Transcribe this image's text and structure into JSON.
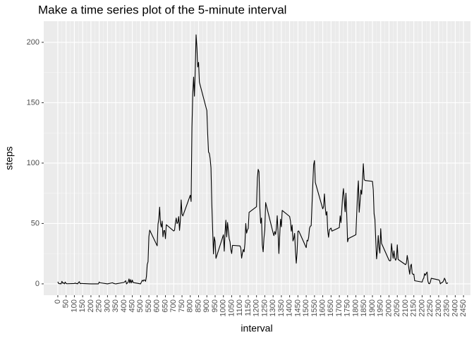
{
  "chart_data": {
    "type": "line",
    "title": "Make a time series plot of the 5-minute interval",
    "x_label": "interval",
    "y_label": "steps",
    "color": "#000000",
    "grid": true,
    "xlim": [
      -85,
      2492
    ],
    "ylim": [
      -9.4,
      217.5
    ],
    "xticks": [
      0,
      50,
      100,
      150,
      200,
      250,
      300,
      350,
      400,
      450,
      500,
      550,
      600,
      650,
      700,
      750,
      800,
      850,
      900,
      950,
      1000,
      1050,
      1100,
      1150,
      1200,
      1250,
      1300,
      1350,
      1400,
      1450,
      1500,
      1550,
      1600,
      1650,
      1700,
      1750,
      1800,
      1850,
      1900,
      1950,
      2000,
      2050,
      2100,
      2150,
      2200,
      2250,
      2300,
      2350,
      2400,
      2450
    ],
    "yticks": [
      0,
      50,
      100,
      150,
      200
    ],
    "x": [
      0,
      5,
      10,
      15,
      20,
      25,
      30,
      35,
      40,
      45,
      50,
      55,
      100,
      105,
      110,
      115,
      120,
      125,
      130,
      135,
      140,
      145,
      150,
      200,
      230,
      245,
      250,
      255,
      300,
      330,
      335,
      340,
      345,
      350,
      400,
      410,
      415,
      425,
      430,
      435,
      440,
      445,
      450,
      455,
      500,
      505,
      510,
      515,
      520,
      525,
      530,
      535,
      540,
      545,
      550,
      555,
      600,
      605,
      610,
      615,
      620,
      625,
      630,
      635,
      640,
      645,
      650,
      655,
      700,
      705,
      710,
      715,
      720,
      725,
      730,
      735,
      740,
      745,
      750,
      755,
      800,
      805,
      810,
      815,
      820,
      825,
      830,
      835,
      840,
      845,
      850,
      855,
      900,
      905,
      910,
      915,
      920,
      925,
      930,
      935,
      940,
      945,
      950,
      955,
      1000,
      1005,
      1010,
      1015,
      1020,
      1025,
      1030,
      1035,
      1040,
      1045,
      1050,
      1055,
      1100,
      1105,
      1110,
      1115,
      1120,
      1125,
      1130,
      1135,
      1140,
      1145,
      1150,
      1155,
      1200,
      1205,
      1210,
      1215,
      1220,
      1225,
      1230,
      1235,
      1240,
      1245,
      1250,
      1255,
      1300,
      1305,
      1310,
      1315,
      1320,
      1325,
      1330,
      1335,
      1340,
      1345,
      1350,
      1355,
      1400,
      1405,
      1410,
      1415,
      1420,
      1425,
      1430,
      1435,
      1440,
      1445,
      1450,
      1455,
      1500,
      1505,
      1510,
      1515,
      1520,
      1525,
      1530,
      1535,
      1540,
      1545,
      1550,
      1555,
      1600,
      1605,
      1610,
      1615,
      1620,
      1625,
      1630,
      1635,
      1640,
      1645,
      1650,
      1655,
      1700,
      1705,
      1710,
      1715,
      1720,
      1725,
      1730,
      1735,
      1740,
      1745,
      1750,
      1755,
      1800,
      1805,
      1810,
      1815,
      1820,
      1825,
      1830,
      1835,
      1840,
      1845,
      1850,
      1855,
      1900,
      1905,
      1910,
      1915,
      1920,
      1925,
      1930,
      1935,
      1940,
      1945,
      1950,
      1955,
      2000,
      2005,
      2010,
      2015,
      2020,
      2025,
      2030,
      2035,
      2040,
      2045,
      2050,
      2055,
      2100,
      2105,
      2110,
      2115,
      2120,
      2125,
      2130,
      2135,
      2140,
      2145,
      2150,
      2155,
      2200,
      2205,
      2210,
      2215,
      2220,
      2225,
      2230,
      2235,
      2240,
      2245,
      2250,
      2255,
      2300,
      2305,
      2310,
      2315,
      2320,
      2325,
      2330,
      2335,
      2340,
      2345,
      2350,
      2355
    ],
    "values": [
      1.7,
      0.3,
      0.1,
      0.2,
      0,
      2.1,
      0.5,
      0.9,
      0,
      1.5,
      0.3,
      0.1,
      0.3,
      0.7,
      0.2,
      0.3,
      0,
      1.1,
      1.8,
      0.2,
      0.2,
      0.4,
      0.3,
      0,
      0,
      0,
      1.5,
      0.9,
      0,
      0.9,
      0.5,
      0.3,
      0.1,
      0,
      1.2,
      2.6,
      0,
      1.4,
      4.1,
      0.7,
      3.5,
      0.8,
      3.1,
      1.1,
      0,
      1.6,
      3,
      2.2,
      3.3,
      3,
      2.1,
      6,
      16,
      18.3,
      39,
      44.5,
      31.5,
      49.3,
      53.8,
      63.5,
      50,
      47,
      52,
      39,
      44,
      44.2,
      37.4,
      49,
      43.8,
      44.4,
      50.5,
      54.5,
      49.9,
      51,
      55.7,
      44.3,
      52.3,
      69.5,
      57.8,
      56.2,
      73.4,
      68.2,
      129.4,
      157.5,
      171.2,
      155.4,
      177.3,
      206.2,
      195.9,
      179.6,
      183.4,
      167,
      143.5,
      124,
      109.1,
      108.1,
      103.7,
      95.9,
      66.2,
      45.2,
      24.8,
      38.8,
      35,
      21.1,
      40.6,
      27,
      42.4,
      52.7,
      38.9,
      50.8,
      44.3,
      37.4,
      34.7,
      28.3,
      25.1,
      31.9,
      31.4,
      29.7,
      21.3,
      25.5,
      28.4,
      26.5,
      33.4,
      50,
      42,
      44.6,
      46,
      59.2,
      63.9,
      87.7,
      94.8,
      92.8,
      63.4,
      50.2,
      54.5,
      32.4,
      26.5,
      37.7,
      45,
      67.3,
      42.3,
      39.9,
      43.3,
      41,
      46.2,
      56.4,
      42.8,
      25.1,
      39.9,
      53.5,
      47.3,
      60.8,
      55.8,
      51.9,
      43.6,
      48.7,
      35.5,
      37.5,
      41.8,
      27.5,
      17.1,
      26.1,
      43.6,
      43.8,
      30,
      36.1,
      35.5,
      38.8,
      46,
      47.8,
      48.1,
      65.3,
      82.9,
      98.7,
      102.1,
      84,
      62.1,
      64.1,
      74.5,
      63.2,
      56.9,
      59.8,
      43.9,
      38.6,
      44.7,
      45.5,
      46.2,
      43.7,
      46.6,
      56.3,
      50.7,
      61.2,
      72.7,
      78.9,
      68.9,
      59.7,
      75.1,
      56.5,
      34.8,
      37.5,
      40.7,
      58,
      74.7,
      85.3,
      59.3,
      67.8,
      77.7,
      74.2,
      85.3,
      99.5,
      86.6,
      85.6,
      84.9,
      77.8,
      58,
      53.4,
      36.3,
      20.7,
      27.4,
      40,
      30.2,
      25.5,
      45.7,
      33.5,
      19.6,
      19,
      19.3,
      33.3,
      26.8,
      21.2,
      27.3,
      21.3,
      19.5,
      21.3,
      32.3,
      20.2,
      15.9,
      17.2,
      23.5,
      19.2,
      12.5,
      8,
      14.7,
      16.3,
      8.7,
      7.8,
      8.1,
      2.6,
      1.5,
      3.7,
      4.8,
      8.5,
      7.1,
      8.7,
      9.8,
      2.2,
      0.3,
      0.1,
      1.6,
      4.6,
      3.3,
      2.8,
      0,
      0.8,
      1,
      1.6,
      2.6,
      4.7,
      3.3,
      0.6,
      0.2,
      1.1
    ]
  }
}
